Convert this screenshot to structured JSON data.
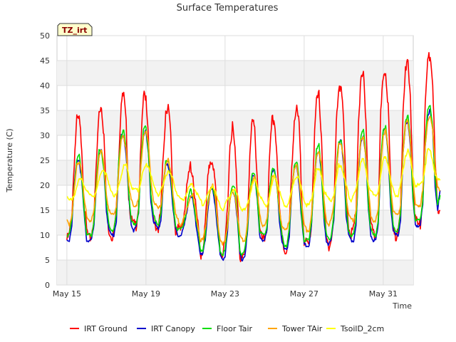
{
  "chart_data": {
    "type": "line",
    "title": "Surface Temperatures",
    "xlabel": "Time",
    "ylabel": "Temperature (C)",
    "badge": "TZ_irt",
    "ylim": [
      0,
      50
    ],
    "yticks": [
      0,
      5,
      10,
      15,
      20,
      25,
      30,
      35,
      40,
      45,
      50
    ],
    "x_start": "May 15",
    "x_end": "Jun 1",
    "xticks": [
      {
        "day": 0,
        "label": "May 15"
      },
      {
        "day": 4,
        "label": "May 19"
      },
      {
        "day": 8,
        "label": "May 23"
      },
      {
        "day": 12,
        "label": "May 27"
      },
      {
        "day": 16,
        "label": "May 31"
      }
    ],
    "grid": true,
    "legend_position": "bottom",
    "sample_step_days": 0.125,
    "series": [
      {
        "name": "IRT Ground",
        "color": "#ff0000",
        "values": [
          9,
          10,
          14,
          25,
          33,
          33,
          28,
          16,
          11,
          9,
          10,
          14,
          25,
          35,
          36,
          30,
          16,
          11,
          10,
          10,
          15,
          26,
          37,
          38,
          32,
          18,
          13,
          12,
          12,
          16,
          28,
          38,
          38,
          30,
          17,
          13,
          12,
          11,
          15,
          26,
          35,
          36,
          30,
          16,
          11,
          11,
          11,
          13,
          17,
          21,
          24,
          22,
          16,
          12,
          6,
          7,
          12,
          21,
          25,
          25,
          20,
          13,
          7,
          6,
          8,
          16,
          28,
          32,
          27,
          18,
          6,
          5,
          6,
          12,
          26,
          33,
          31,
          22,
          11,
          9,
          9,
          12,
          25,
          33,
          33,
          26,
          15,
          10,
          7,
          7,
          11,
          24,
          33,
          35,
          32,
          18,
          9,
          8,
          8,
          13,
          28,
          37,
          38,
          30,
          16,
          9,
          8,
          9,
          14,
          32,
          40,
          40,
          32,
          18,
          12,
          10,
          11,
          15,
          33,
          41,
          42,
          33,
          18,
          12,
          10,
          10,
          14,
          34,
          42,
          43,
          36,
          20,
          12,
          10,
          10,
          15,
          35,
          44,
          44,
          37,
          21,
          13,
          12,
          12,
          18,
          36,
          45,
          46,
          41,
          24,
          15,
          15
        ]
      },
      {
        "name": "IRT Canopy",
        "color": "#0000cc",
        "values": [
          9,
          9,
          12,
          20,
          25,
          25,
          21,
          14,
          9,
          9,
          9,
          12,
          21,
          26,
          27,
          23,
          15,
          11,
          10,
          10,
          13,
          24,
          30,
          30,
          26,
          18,
          12,
          11,
          12,
          14,
          25,
          30,
          31,
          26,
          17,
          13,
          12,
          11,
          13,
          20,
          24,
          24,
          21,
          15,
          11,
          10,
          10,
          11,
          13,
          16,
          18,
          17,
          13,
          10,
          6,
          6,
          9,
          15,
          19,
          19,
          16,
          11,
          6,
          5,
          6,
          11,
          17,
          19,
          18,
          13,
          6,
          5,
          6,
          10,
          18,
          22,
          22,
          17,
          10,
          9,
          9,
          11,
          19,
          23,
          23,
          20,
          13,
          9,
          7,
          7,
          10,
          19,
          23,
          24,
          20,
          13,
          8,
          8,
          8,
          12,
          21,
          26,
          27,
          22,
          13,
          9,
          8,
          9,
          13,
          23,
          28,
          29,
          24,
          14,
          10,
          9,
          9,
          12,
          23,
          29,
          30,
          25,
          15,
          10,
          9,
          9,
          12,
          25,
          31,
          31,
          26,
          16,
          11,
          10,
          10,
          13,
          26,
          32,
          33,
          28,
          17,
          12,
          12,
          12,
          16,
          28,
          34,
          35,
          31,
          20,
          15,
          19
        ]
      },
      {
        "name": "Floor Tair",
        "color": "#00dd00",
        "values": [
          10,
          10,
          13,
          20,
          25,
          26,
          22,
          15,
          10,
          10,
          10,
          13,
          21,
          27,
          27,
          23,
          16,
          12,
          11,
          11,
          14,
          25,
          30,
          31,
          27,
          19,
          13,
          12,
          12,
          15,
          25,
          31,
          32,
          27,
          18,
          14,
          13,
          12,
          14,
          20,
          25,
          25,
          22,
          16,
          12,
          11,
          11,
          12,
          14,
          17,
          19,
          18,
          14,
          11,
          7,
          7,
          10,
          16,
          19,
          20,
          17,
          12,
          7,
          6,
          7,
          12,
          18,
          20,
          19,
          14,
          7,
          6,
          7,
          11,
          19,
          22,
          22,
          18,
          11,
          10,
          10,
          12,
          19,
          23,
          23,
          20,
          14,
          10,
          8,
          8,
          11,
          19,
          24,
          25,
          21,
          14,
          9,
          9,
          9,
          13,
          21,
          27,
          28,
          23,
          14,
          10,
          9,
          10,
          14,
          23,
          29,
          29,
          25,
          15,
          11,
          10,
          10,
          13,
          24,
          30,
          31,
          26,
          16,
          11,
          10,
          10,
          13,
          25,
          31,
          32,
          27,
          17,
          12,
          11,
          11,
          14,
          27,
          33,
          34,
          29,
          18,
          13,
          13,
          13,
          17,
          29,
          35,
          36,
          32,
          21,
          16,
          18
        ]
      },
      {
        "name": "Tower TAir",
        "color": "#ffa500",
        "values": [
          13,
          12,
          14,
          19,
          24,
          25,
          23,
          17,
          14,
          13,
          13,
          15,
          20,
          26,
          27,
          24,
          18,
          15,
          14,
          14,
          16,
          23,
          29,
          30,
          27,
          20,
          17,
          16,
          16,
          17,
          24,
          30,
          31,
          28,
          21,
          17,
          16,
          15,
          16,
          20,
          24,
          25,
          23,
          18,
          14,
          13,
          12,
          13,
          14,
          16,
          18,
          18,
          15,
          12,
          9,
          9,
          11,
          16,
          19,
          20,
          18,
          13,
          9,
          8,
          9,
          12,
          17,
          19,
          18,
          14,
          10,
          9,
          9,
          12,
          18,
          21,
          22,
          19,
          14,
          12,
          12,
          13,
          18,
          22,
          22,
          20,
          15,
          12,
          11,
          11,
          13,
          19,
          23,
          24,
          21,
          16,
          12,
          11,
          11,
          14,
          21,
          26,
          27,
          24,
          17,
          13,
          12,
          13,
          16,
          23,
          28,
          28,
          25,
          18,
          14,
          13,
          13,
          15,
          24,
          29,
          30,
          26,
          19,
          14,
          13,
          13,
          15,
          24,
          30,
          31,
          27,
          20,
          15,
          14,
          14,
          16,
          26,
          32,
          33,
          29,
          21,
          16,
          16,
          16,
          19,
          28,
          33,
          34,
          31,
          24,
          20,
          19
        ]
      },
      {
        "name": "TsoilD_2cm",
        "color": "#ffff00",
        "values": [
          18,
          17,
          17,
          18,
          20,
          21,
          21,
          20,
          19,
          18,
          18,
          18,
          19,
          21,
          23,
          23,
          22,
          20,
          19,
          18,
          18,
          20,
          22,
          24,
          24,
          22,
          20,
          19,
          19,
          19,
          21,
          23,
          24,
          24,
          22,
          20,
          19,
          18,
          19,
          20,
          22,
          23,
          22,
          21,
          19,
          18,
          17,
          17,
          18,
          19,
          20,
          20,
          19,
          18,
          17,
          16,
          17,
          18,
          19,
          20,
          19,
          17,
          16,
          15,
          16,
          17,
          18,
          19,
          19,
          18,
          16,
          15,
          15,
          16,
          18,
          20,
          21,
          20,
          18,
          17,
          16,
          16,
          18,
          20,
          22,
          21,
          19,
          17,
          16,
          16,
          17,
          19,
          21,
          22,
          21,
          19,
          17,
          16,
          16,
          17,
          20,
          23,
          23,
          22,
          19,
          18,
          17,
          17,
          18,
          21,
          24,
          24,
          22,
          20,
          18,
          17,
          18,
          19,
          22,
          25,
          25,
          23,
          20,
          19,
          18,
          18,
          19,
          22,
          25,
          26,
          24,
          21,
          19,
          18,
          18,
          20,
          23,
          26,
          27,
          25,
          22,
          20,
          20,
          20,
          21,
          24,
          27,
          27,
          25,
          22,
          21,
          21
        ]
      }
    ]
  }
}
